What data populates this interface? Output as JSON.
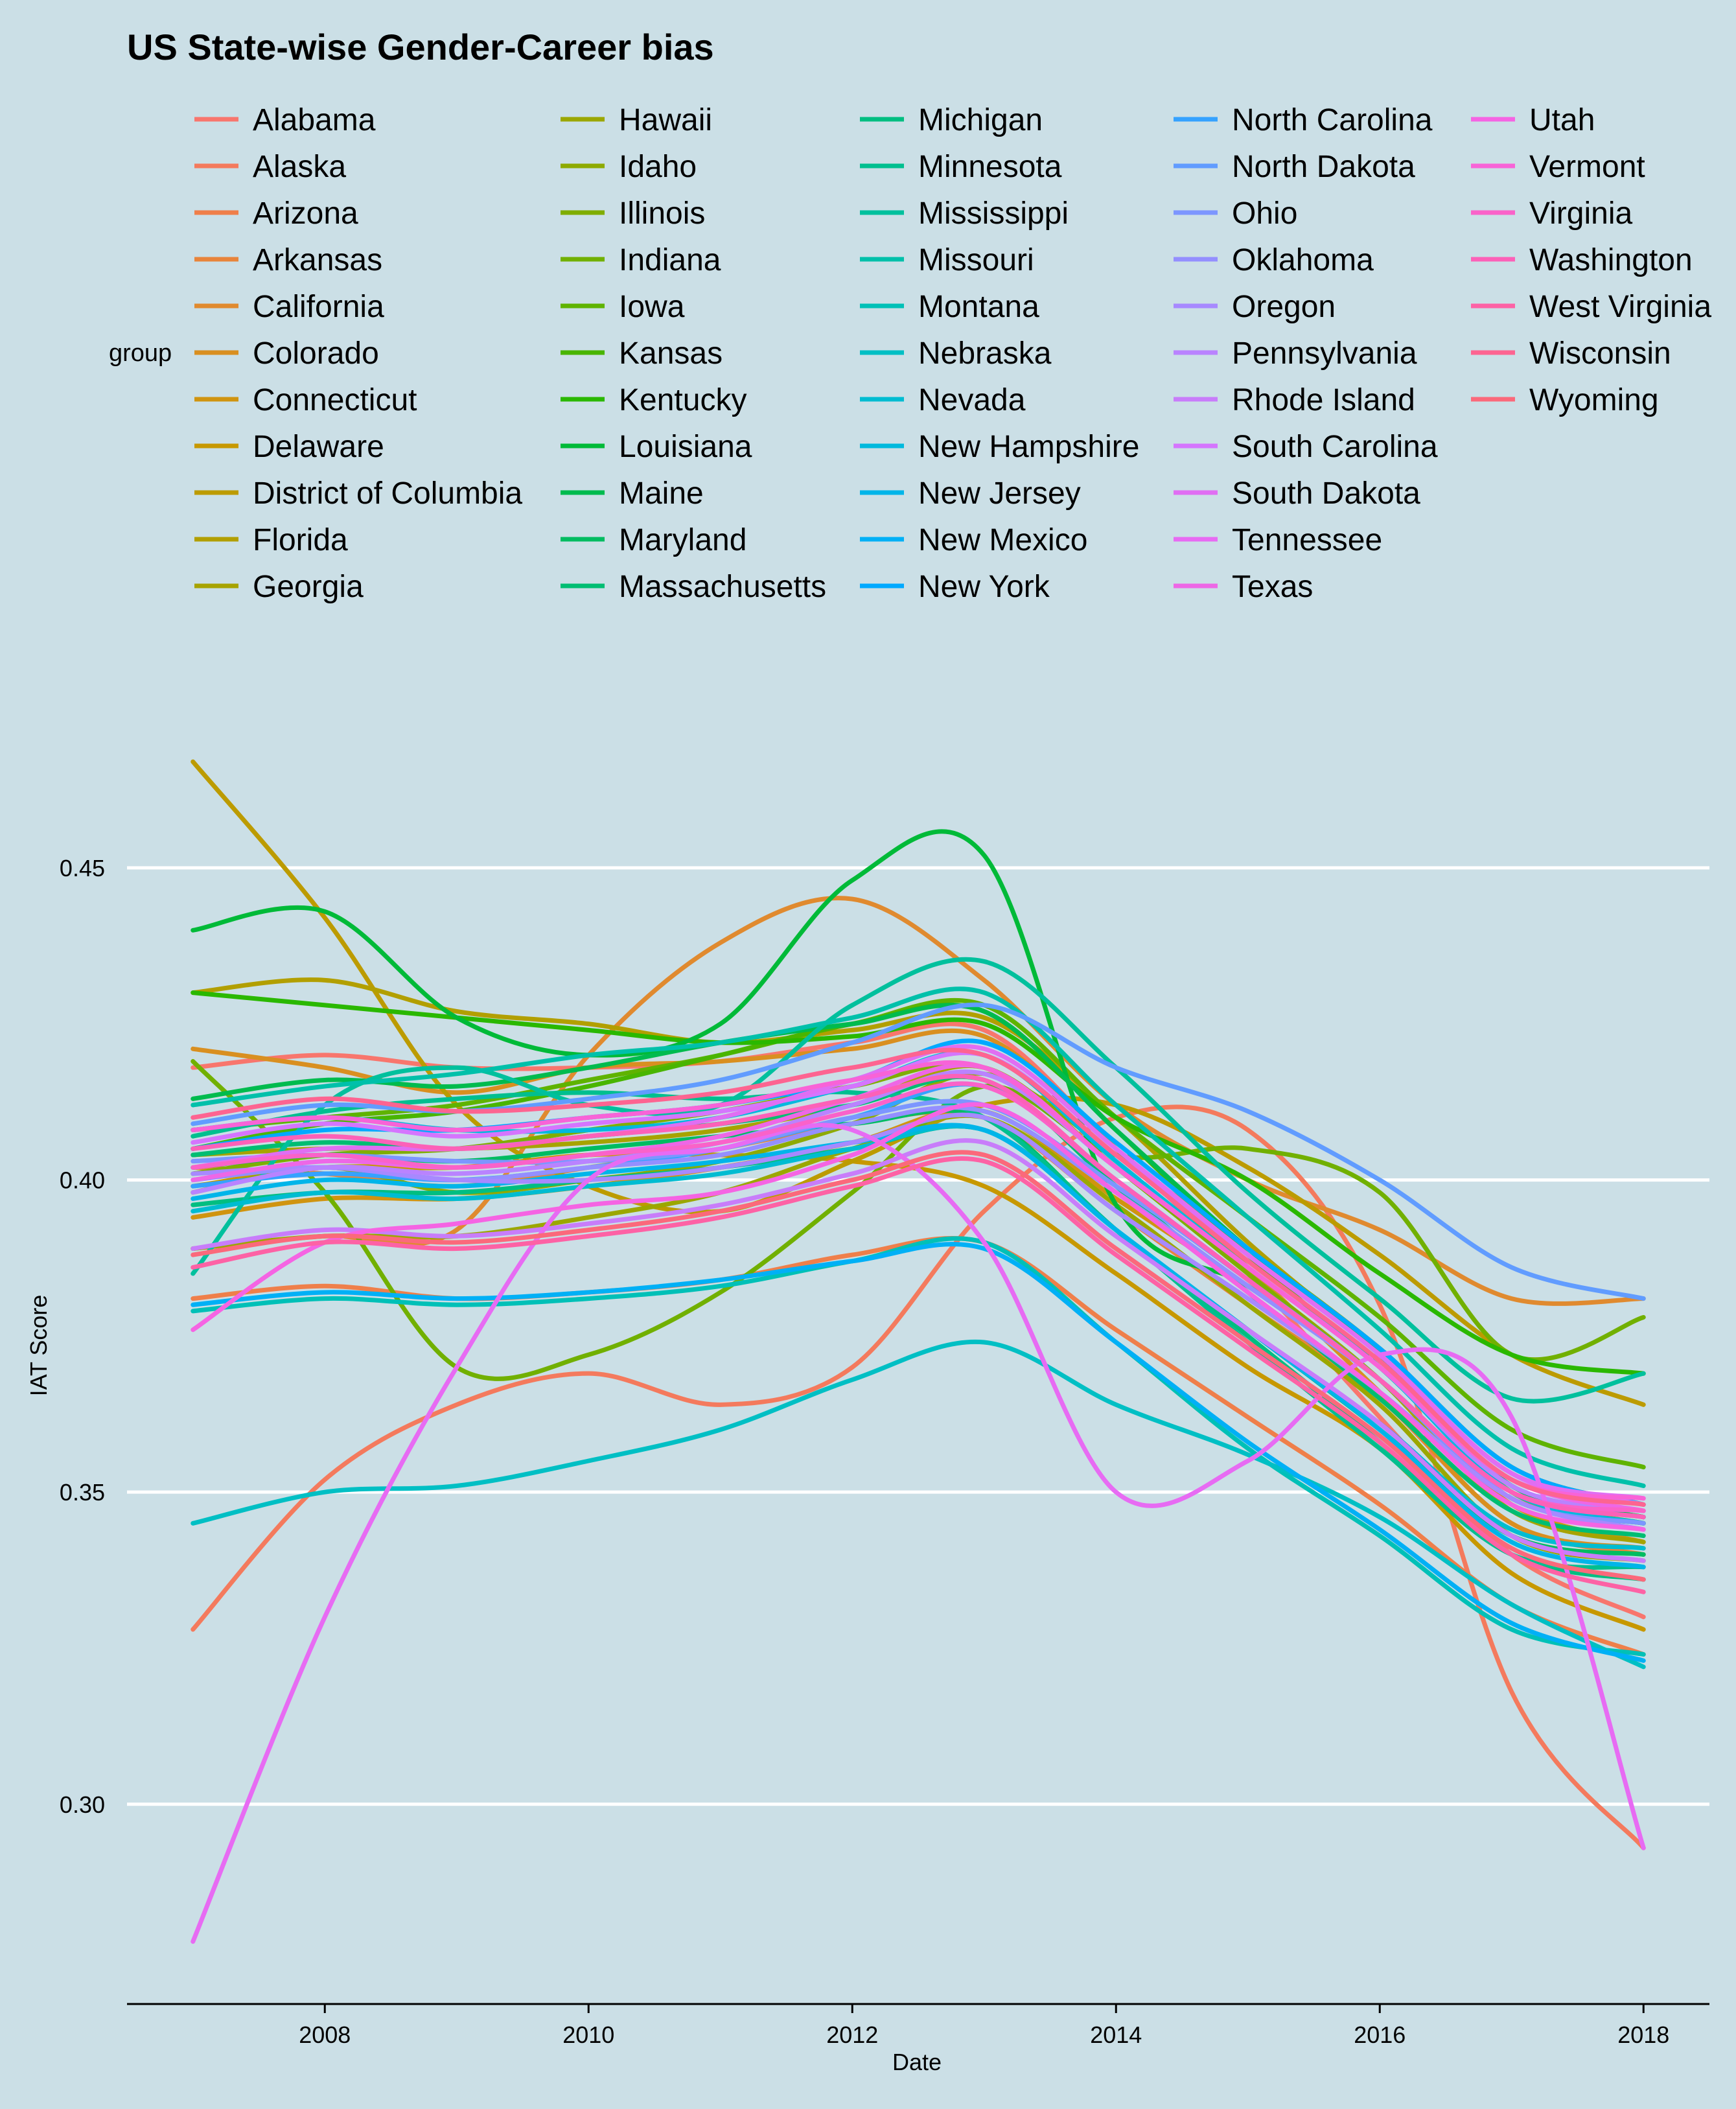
{
  "chart_data": {
    "type": "line",
    "title": "US State-wise Gender-Career bias",
    "xlabel": "Date",
    "ylabel": "IAT Score",
    "legend_title": "group",
    "legend_position": "top",
    "grid": "horizontal major",
    "xlim": [
      2006.5,
      2018.5
    ],
    "ylim": [
      0.268,
      0.48
    ],
    "x_ticks": [
      2008,
      2010,
      2012,
      2014,
      2016,
      2018
    ],
    "x_tick_labels": [
      "2008",
      "2010",
      "2012",
      "2014",
      "2016",
      "2018"
    ],
    "y_ticks": [
      0.3,
      0.35,
      0.4,
      0.45
    ],
    "y_tick_labels": [
      "0.30",
      "0.35",
      "0.40",
      "0.45"
    ],
    "x": [
      2007,
      2008,
      2009,
      2010,
      2011,
      2012,
      2013,
      2014,
      2015,
      2016,
      2017,
      2018
    ],
    "series": [
      {
        "name": "Alabama",
        "color": "#F8766D",
        "values": [
          0.418,
          0.42,
          0.418,
          0.418,
          0.419,
          0.422,
          0.424,
          0.405,
          0.385,
          0.362,
          0.34,
          0.33
        ]
      },
      {
        "name": "Alaska",
        "color": "#F47A5D",
        "values": [
          0.328,
          0.352,
          0.364,
          0.369,
          0.364,
          0.37,
          0.395,
          0.41,
          0.408,
          0.38,
          0.318,
          0.293
        ]
      },
      {
        "name": "Arizona",
        "color": "#EF7F4A",
        "values": [
          0.381,
          0.383,
          0.381,
          0.382,
          0.384,
          0.388,
          0.39,
          0.376,
          0.362,
          0.348,
          0.332,
          0.324
        ]
      },
      {
        "name": "Arkansas",
        "color": "#E8843B",
        "values": [
          0.402,
          0.401,
          0.399,
          0.402,
          0.405,
          0.409,
          0.41,
          0.395,
          0.38,
          0.365,
          0.345,
          0.34
        ]
      },
      {
        "name": "California",
        "color": "#E08A2F",
        "values": [
          0.389,
          0.391,
          0.392,
          0.42,
          0.438,
          0.445,
          0.432,
          0.412,
          0.4,
          0.392,
          0.381,
          0.381
        ]
      },
      {
        "name": "Colorado",
        "color": "#D98F20",
        "values": [
          0.421,
          0.418,
          0.414,
          0.418,
          0.419,
          0.421,
          0.423,
          0.405,
          0.386,
          0.366,
          0.345,
          0.341
        ]
      },
      {
        "name": "Connecticut",
        "color": "#D09410",
        "values": [
          0.394,
          0.397,
          0.397,
          0.399,
          0.402,
          0.406,
          0.411,
          0.397,
          0.383,
          0.368,
          0.348,
          0.342
        ]
      },
      {
        "name": "Delaware",
        "color": "#C79800",
        "values": [
          0.399,
          0.402,
          0.402,
          0.404,
          0.404,
          0.403,
          0.399,
          0.385,
          0.37,
          0.357,
          0.337,
          0.328
        ]
      },
      {
        "name": "District of Columbia",
        "color": "#BC9B00",
        "values": [
          0.467,
          0.442,
          0.412,
          0.399,
          0.395,
          0.403,
          0.412,
          0.412,
          0.402,
          0.388,
          0.372,
          0.364
        ]
      },
      {
        "name": "Florida",
        "color": "#B29F00",
        "values": [
          0.43,
          0.432,
          0.427,
          0.425,
          0.422,
          0.424,
          0.426,
          0.41,
          0.39,
          0.372,
          0.35,
          0.345
        ]
      },
      {
        "name": "Georgia",
        "color": "#A7A300",
        "values": [
          0.404,
          0.405,
          0.405,
          0.406,
          0.408,
          0.412,
          0.418,
          0.402,
          0.385,
          0.368,
          0.347,
          0.342
        ]
      },
      {
        "name": "Hawaii",
        "color": "#9BA700",
        "values": [
          0.389,
          0.391,
          0.391,
          0.394,
          0.398,
          0.405,
          0.41,
          0.396,
          0.38,
          0.364,
          0.343,
          0.339
        ]
      },
      {
        "name": "Idaho",
        "color": "#8EAA00",
        "values": [
          0.398,
          0.402,
          0.398,
          0.4,
          0.403,
          0.409,
          0.417,
          0.404,
          0.389,
          0.373,
          0.354,
          0.348
        ]
      },
      {
        "name": "Illinois",
        "color": "#80AD00",
        "values": [
          0.401,
          0.404,
          0.405,
          0.408,
          0.411,
          0.415,
          0.418,
          0.402,
          0.385,
          0.368,
          0.35,
          0.345
        ]
      },
      {
        "name": "Indiana",
        "color": "#71B000",
        "values": [
          0.419,
          0.398,
          0.37,
          0.372,
          0.382,
          0.398,
          0.415,
          0.404,
          0.405,
          0.398,
          0.372,
          0.378
        ]
      },
      {
        "name": "Iowa",
        "color": "#5FB300",
        "values": [
          0.408,
          0.41,
          0.412,
          0.416,
          0.42,
          0.425,
          0.428,
          0.41,
          0.394,
          0.378,
          0.36,
          0.354
        ]
      },
      {
        "name": "Kansas",
        "color": "#49B500",
        "values": [
          0.405,
          0.409,
          0.411,
          0.415,
          0.42,
          0.425,
          0.427,
          0.408,
          0.388,
          0.37,
          0.351,
          0.346
        ]
      },
      {
        "name": "Kentucky",
        "color": "#2AB800",
        "values": [
          0.43,
          0.428,
          0.426,
          0.424,
          0.422,
          0.423,
          0.425,
          0.41,
          0.4,
          0.385,
          0.372,
          0.369
        ]
      },
      {
        "name": "Louisiana",
        "color": "#00BA38",
        "values": [
          0.44,
          0.443,
          0.426,
          0.42,
          0.425,
          0.448,
          0.452,
          0.396,
          0.383,
          0.368,
          0.349,
          0.345
        ]
      },
      {
        "name": "Maine",
        "color": "#00BB4E",
        "values": [
          0.413,
          0.416,
          0.415,
          0.418,
          0.422,
          0.425,
          0.427,
          0.408,
          0.389,
          0.372,
          0.351,
          0.346
        ]
      },
      {
        "name": "Maryland",
        "color": "#00BC61",
        "values": [
          0.402,
          0.404,
          0.403,
          0.405,
          0.407,
          0.409,
          0.41,
          0.392,
          0.376,
          0.36,
          0.343,
          0.34
        ]
      },
      {
        "name": "Massachusetts",
        "color": "#00BD72",
        "values": [
          0.404,
          0.406,
          0.405,
          0.407,
          0.409,
          0.412,
          0.416,
          0.399,
          0.382,
          0.365,
          0.347,
          0.343
        ]
      },
      {
        "name": "Michigan",
        "color": "#00BE81",
        "values": [
          0.396,
          0.398,
          0.398,
          0.4,
          0.402,
          0.405,
          0.408,
          0.392,
          0.375,
          0.358,
          0.34,
          0.336
        ]
      },
      {
        "name": "Minnesota",
        "color": "#00BF8F",
        "values": [
          0.407,
          0.411,
          0.413,
          0.414,
          0.413,
          0.414,
          0.41,
          0.392,
          0.374,
          0.357,
          0.34,
          0.338
        ]
      },
      {
        "name": "Mississippi",
        "color": "#00C09D",
        "values": [
          0.385,
          0.412,
          0.418,
          0.412,
          0.412,
          0.428,
          0.435,
          0.418,
          0.398,
          0.381,
          0.365,
          0.369
        ]
      },
      {
        "name": "Missouri",
        "color": "#00C0AA",
        "values": [
          0.412,
          0.415,
          0.417,
          0.42,
          0.422,
          0.426,
          0.43,
          0.412,
          0.394,
          0.376,
          0.357,
          0.351
        ]
      },
      {
        "name": "Montana",
        "color": "#00C0B7",
        "values": [
          0.379,
          0.381,
          0.38,
          0.381,
          0.383,
          0.387,
          0.39,
          0.374,
          0.357,
          0.343,
          0.328,
          0.324
        ]
      },
      {
        "name": "Nebraska",
        "color": "#00BFC4",
        "values": [
          0.345,
          0.35,
          0.351,
          0.355,
          0.36,
          0.368,
          0.374,
          0.364,
          0.356,
          0.346,
          0.332,
          0.322
        ]
      },
      {
        "name": "Nevada",
        "color": "#00BCD1",
        "values": [
          0.395,
          0.398,
          0.397,
          0.399,
          0.401,
          0.405,
          0.408,
          0.392,
          0.376,
          0.361,
          0.344,
          0.341
        ]
      },
      {
        "name": "New Hampshire",
        "color": "#00B9DD",
        "values": [
          0.408,
          0.41,
          0.408,
          0.408,
          0.41,
          0.415,
          0.42,
          0.403,
          0.386,
          0.37,
          0.35,
          0.345
        ]
      },
      {
        "name": "New Jersey",
        "color": "#00B5E9",
        "values": [
          0.397,
          0.4,
          0.399,
          0.401,
          0.403,
          0.406,
          0.408,
          0.392,
          0.376,
          0.36,
          0.342,
          0.338
        ]
      },
      {
        "name": "New Mexico",
        "color": "#00B0F6",
        "values": [
          0.38,
          0.382,
          0.381,
          0.382,
          0.384,
          0.387,
          0.389,
          0.374,
          0.358,
          0.344,
          0.329,
          0.323
        ]
      },
      {
        "name": "New York",
        "color": "#00A9FF",
        "values": [
          0.405,
          0.408,
          0.408,
          0.41,
          0.412,
          0.416,
          0.422,
          0.406,
          0.389,
          0.373,
          0.354,
          0.348
        ]
      },
      {
        "name": "North Carolina",
        "color": "#35A2FF",
        "values": [
          0.399,
          0.401,
          0.4,
          0.402,
          0.405,
          0.41,
          0.415,
          0.4,
          0.384,
          0.368,
          0.35,
          0.346
        ]
      },
      {
        "name": "North Dakota",
        "color": "#619CFF",
        "values": [
          0.409,
          0.412,
          0.411,
          0.413,
          0.416,
          0.422,
          0.428,
          0.418,
          0.411,
          0.4,
          0.386,
          0.381
        ]
      },
      {
        "name": "Ohio",
        "color": "#7C96FF",
        "values": [
          0.403,
          0.404,
          0.403,
          0.403,
          0.405,
          0.41,
          0.412,
          0.399,
          0.384,
          0.368,
          0.349,
          0.345
        ]
      },
      {
        "name": "Oklahoma",
        "color": "#948FFF",
        "values": [
          0.4,
          0.402,
          0.4,
          0.402,
          0.404,
          0.409,
          0.411,
          0.398,
          0.383,
          0.368,
          0.35,
          0.347
        ]
      },
      {
        "name": "Oregon",
        "color": "#A789FF",
        "values": [
          0.401,
          0.402,
          0.4,
          0.4,
          0.402,
          0.406,
          0.41,
          0.395,
          0.381,
          0.366,
          0.349,
          0.344
        ]
      },
      {
        "name": "Pennsylvania",
        "color": "#B983FF",
        "values": [
          0.398,
          0.402,
          0.401,
          0.403,
          0.406,
          0.412,
          0.417,
          0.402,
          0.386,
          0.37,
          0.351,
          0.347
        ]
      },
      {
        "name": "Rhode Island",
        "color": "#C87DFA",
        "values": [
          0.389,
          0.392,
          0.391,
          0.393,
          0.396,
          0.401,
          0.406,
          0.391,
          0.376,
          0.361,
          0.343,
          0.339
        ]
      },
      {
        "name": "South Carolina",
        "color": "#D575FE",
        "values": [
          0.406,
          0.409,
          0.407,
          0.409,
          0.411,
          0.415,
          0.42,
          0.404,
          0.388,
          0.372,
          0.353,
          0.348
        ]
      },
      {
        "name": "South Dakota",
        "color": "#E06EF3",
        "values": [
          0.402,
          0.405,
          0.405,
          0.407,
          0.41,
          0.416,
          0.421,
          0.405,
          0.388,
          0.372,
          0.353,
          0.349
        ]
      },
      {
        "name": "Tennessee",
        "color": "#E76BF3",
        "values": [
          0.278,
          0.33,
          0.37,
          0.4,
          0.405,
          0.408,
          0.39,
          0.35,
          0.355,
          0.372,
          0.362,
          0.293
        ]
      },
      {
        "name": "Texas",
        "color": "#EE67E6",
        "values": [
          0.4,
          0.403,
          0.402,
          0.404,
          0.407,
          0.413,
          0.418,
          0.402,
          0.386,
          0.37,
          0.352,
          0.347
        ]
      },
      {
        "name": "Utah",
        "color": "#F564E3",
        "values": [
          0.376,
          0.39,
          0.393,
          0.396,
          0.398,
          0.404,
          0.412,
          0.398,
          0.382,
          0.366,
          0.348,
          0.344
        ]
      },
      {
        "name": "Vermont",
        "color": "#F863D7",
        "values": [
          0.408,
          0.41,
          0.408,
          0.41,
          0.412,
          0.416,
          0.418,
          0.402,
          0.386,
          0.37,
          0.352,
          0.349
        ]
      },
      {
        "name": "Virginia",
        "color": "#FA62C9",
        "values": [
          0.402,
          0.404,
          0.402,
          0.404,
          0.406,
          0.411,
          0.415,
          0.4,
          0.384,
          0.368,
          0.35,
          0.347
        ]
      },
      {
        "name": "Washington",
        "color": "#FC61B8",
        "values": [
          0.405,
          0.407,
          0.405,
          0.407,
          0.409,
          0.413,
          0.416,
          0.4,
          0.384,
          0.368,
          0.35,
          0.346
        ]
      },
      {
        "name": "West Virginia",
        "color": "#FD62A5",
        "values": [
          0.386,
          0.39,
          0.389,
          0.391,
          0.394,
          0.399,
          0.403,
          0.388,
          0.373,
          0.358,
          0.34,
          0.334
        ]
      },
      {
        "name": "Wisconsin",
        "color": "#FD6491",
        "values": [
          0.41,
          0.413,
          0.411,
          0.412,
          0.414,
          0.418,
          0.42,
          0.404,
          0.387,
          0.371,
          0.352,
          0.348
        ]
      },
      {
        "name": "Wyoming",
        "color": "#FB697B",
        "values": [
          0.388,
          0.391,
          0.39,
          0.392,
          0.395,
          0.4,
          0.404,
          0.389,
          0.374,
          0.359,
          0.341,
          0.336
        ]
      }
    ]
  }
}
